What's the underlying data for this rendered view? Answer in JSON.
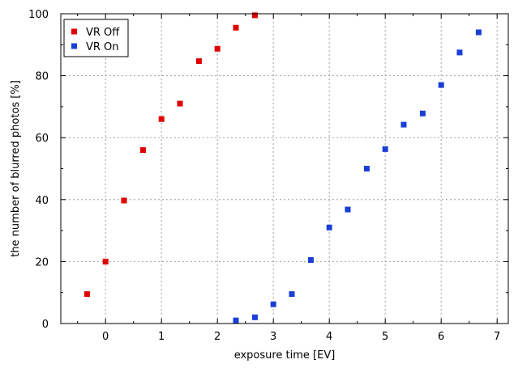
{
  "chart_data": {
    "type": "scatter",
    "title": "",
    "xlabel": "exposure time [EV]",
    "ylabel": "the number of blurred photos [%]",
    "xlim": [
      -0.8,
      7.2
    ],
    "ylim": [
      0,
      100
    ],
    "xticks": [
      0,
      1,
      2,
      3,
      4,
      5,
      6,
      7
    ],
    "yticks": [
      0,
      20,
      40,
      60,
      80,
      100
    ],
    "grid": true,
    "legend_position": "top-left",
    "series": [
      {
        "name": "VR Off",
        "color": "#e00000",
        "marker": "square",
        "x": [
          -0.33,
          0,
          0.33,
          0.67,
          1,
          1.33,
          1.67,
          2,
          2.33,
          2.67
        ],
        "y": [
          9.5,
          20,
          39.7,
          56,
          66,
          71,
          84.7,
          88.7,
          95.5,
          99.5
        ]
      },
      {
        "name": "VR On",
        "color": "#1a3fd6",
        "marker": "square",
        "x": [
          2.33,
          2.67,
          3,
          3.33,
          3.67,
          4,
          4.33,
          4.67,
          5,
          5.33,
          5.67,
          6,
          6.33,
          6.67
        ],
        "y": [
          1,
          2,
          6.2,
          9.5,
          20.5,
          31,
          36.8,
          50,
          56.3,
          64.2,
          67.8,
          77,
          87.5,
          94
        ]
      }
    ]
  }
}
